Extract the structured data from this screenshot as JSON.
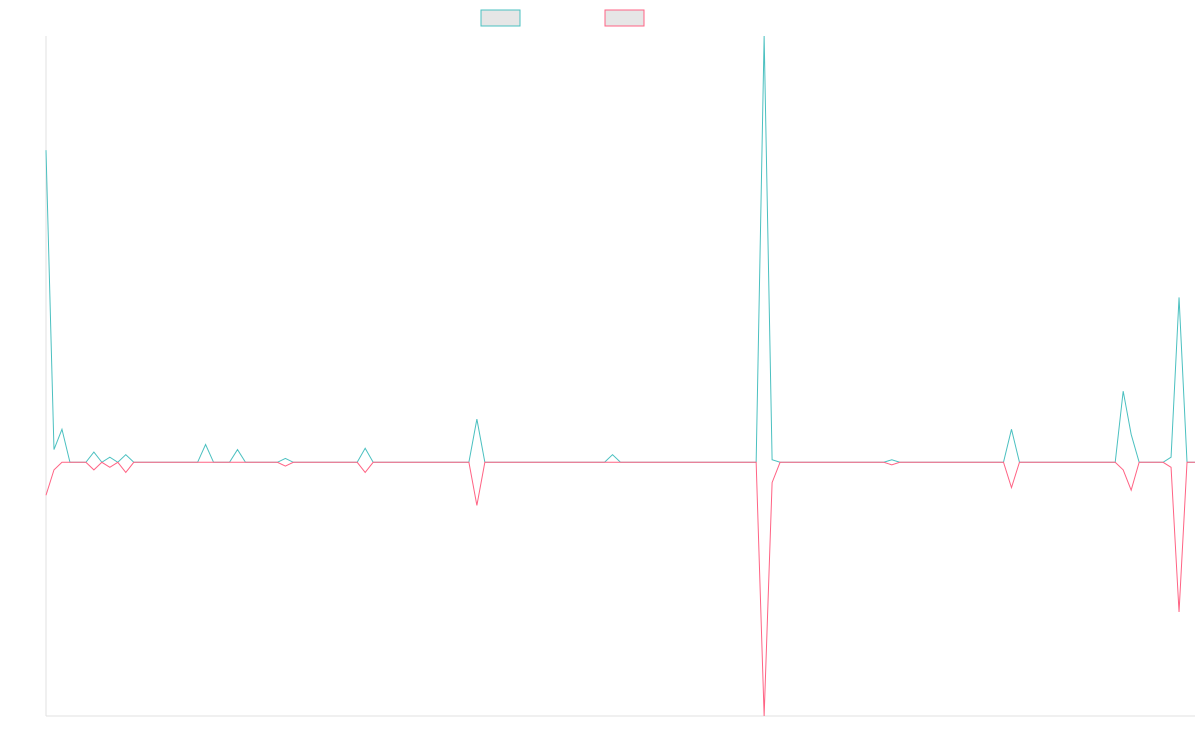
{
  "chart_data": {
    "type": "line",
    "categories": [
      null,
      null,
      null,
      null,
      null,
      null,
      null,
      null,
      null,
      null,
      null,
      null,
      null,
      null,
      null,
      null,
      null,
      null,
      null,
      null,
      null,
      null,
      null,
      null,
      null,
      null,
      null,
      null,
      null,
      null,
      null,
      null,
      null,
      null,
      null,
      null,
      null,
      null,
      null,
      null,
      null,
      null,
      null,
      null,
      null,
      null,
      null,
      null,
      null,
      null,
      null,
      null,
      null,
      null,
      null,
      null,
      null,
      null,
      null,
      null,
      null,
      null,
      null,
      null,
      null,
      null,
      null,
      null,
      null,
      null,
      null,
      null,
      null,
      null,
      null,
      null,
      null,
      null,
      null,
      null,
      null,
      null,
      null,
      null,
      null,
      null,
      null,
      null,
      null,
      null,
      null,
      null,
      null,
      null,
      null,
      null,
      null,
      null,
      null,
      null,
      null,
      null,
      null,
      null,
      null,
      null,
      null,
      null,
      null,
      null,
      null,
      null,
      null,
      null,
      null,
      null,
      null,
      null,
      null,
      null,
      null,
      null,
      null,
      null,
      null,
      null,
      null,
      null,
      null,
      null,
      null,
      null,
      null,
      null,
      null,
      null,
      null,
      null,
      null,
      null,
      null,
      null,
      null,
      null,
      null
    ],
    "series": [
      {
        "color": "#4bc0c0",
        "values": [
          123,
          5,
          13,
          0,
          0,
          0,
          4,
          0,
          2,
          0,
          3,
          0,
          0,
          0,
          0,
          0,
          0,
          0,
          0,
          0,
          7,
          0,
          0,
          0,
          5,
          0,
          0,
          0,
          0,
          0,
          1.5,
          0,
          0,
          0,
          0,
          0,
          0,
          0,
          0,
          0,
          5.5,
          0,
          0,
          0,
          0,
          0,
          0,
          0,
          0,
          0,
          0,
          0,
          0,
          0,
          17,
          0,
          0,
          0,
          0,
          0,
          0,
          0,
          0,
          0,
          0,
          0,
          0,
          0,
          0,
          0,
          0,
          3,
          0,
          0,
          0,
          0,
          0,
          0,
          0,
          0,
          0,
          0,
          0,
          0,
          0,
          0,
          0,
          0,
          0,
          0,
          168,
          1,
          0,
          0,
          0,
          0,
          0,
          0,
          0,
          0,
          0,
          0,
          0,
          0,
          0,
          0,
          1,
          0,
          0,
          0,
          0,
          0,
          0,
          0,
          0,
          0,
          0,
          0,
          0,
          0,
          0,
          13,
          0,
          0,
          0,
          0,
          0,
          0,
          0,
          0,
          0,
          0,
          0,
          0,
          0,
          28,
          11,
          0,
          0,
          0,
          0,
          2,
          65,
          0,
          0
        ]
      },
      {
        "color": "#ff6384",
        "values": [
          -13,
          -3,
          0,
          0,
          0,
          0,
          -3,
          0,
          -2,
          0,
          -4,
          0,
          0,
          0,
          0,
          0,
          0,
          0,
          0,
          0,
          0,
          0,
          0,
          0,
          0,
          0,
          0,
          0,
          0,
          0,
          -1.5,
          0,
          0,
          0,
          0,
          0,
          0,
          0,
          0,
          0,
          -4,
          0,
          0,
          0,
          0,
          0,
          0,
          0,
          0,
          0,
          0,
          0,
          0,
          0,
          -17,
          0,
          0,
          0,
          0,
          0,
          0,
          0,
          0,
          0,
          0,
          0,
          0,
          0,
          0,
          0,
          0,
          0,
          0,
          0,
          0,
          0,
          0,
          0,
          0,
          0,
          0,
          0,
          0,
          0,
          0,
          0,
          0,
          0,
          0,
          0,
          -100,
          -8,
          0,
          0,
          0,
          0,
          0,
          0,
          0,
          0,
          0,
          0,
          0,
          0,
          0,
          0,
          -1,
          0,
          0,
          0,
          0,
          0,
          0,
          0,
          0,
          0,
          0,
          0,
          0,
          0,
          0,
          -10,
          0,
          0,
          0,
          0,
          0,
          0,
          0,
          0,
          0,
          0,
          0,
          0,
          0,
          -3,
          -11,
          0,
          0,
          0,
          0,
          -2,
          -59,
          0,
          0
        ]
      }
    ],
    "ylim": [
      -100,
      168
    ],
    "grid": false,
    "legend": "top"
  }
}
